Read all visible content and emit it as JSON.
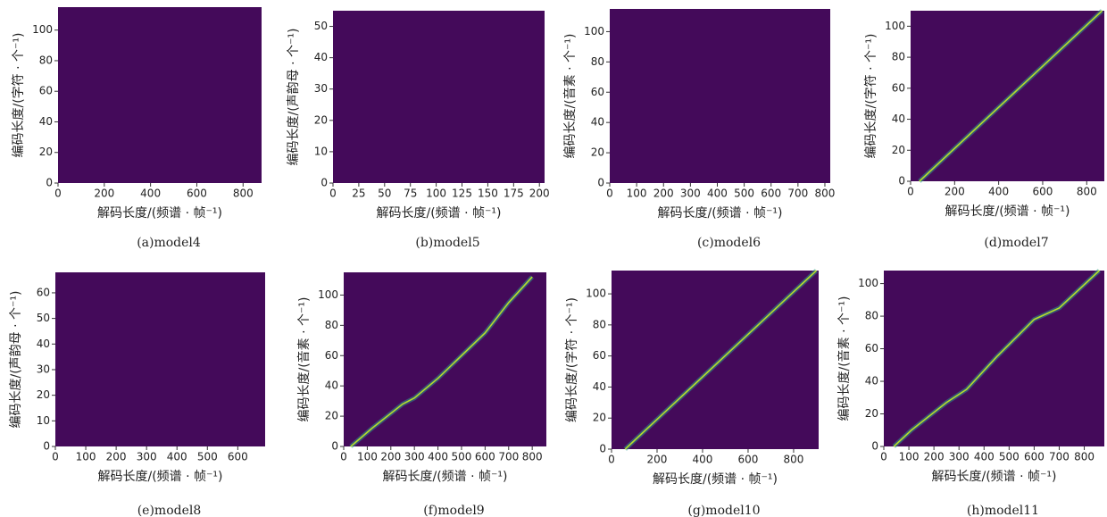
{
  "chart_data": [
    {
      "type": "heatmap",
      "caption": "(a)model4",
      "xlabel": "解码长度/(频谱 · 帧⁻¹)",
      "ylabel": "编码长度/(字符 · 个⁻¹)",
      "xlim": [
        0,
        880
      ],
      "xticks": [
        0,
        200,
        400,
        600,
        800
      ],
      "ylim": [
        0,
        115
      ],
      "yticks": [
        0,
        20,
        40,
        60,
        80,
        100
      ]
    },
    {
      "type": "heatmap",
      "caption": "(b)model5",
      "xlabel": "解码长度/(频谱 · 帧⁻¹)",
      "ylabel": "编码长度/(声韵母 · 个⁻¹)",
      "xlim": [
        0,
        205
      ],
      "xticks": [
        0,
        25,
        50,
        75,
        100,
        125,
        150,
        175,
        200
      ],
      "ylim": [
        0,
        55
      ],
      "yticks": [
        0,
        10,
        20,
        30,
        40,
        50
      ]
    },
    {
      "type": "heatmap",
      "caption": "(c)model6",
      "xlabel": "解码长度/(频谱 · 帧⁻¹)",
      "ylabel": "编码长度/(音素 · 个⁻¹)",
      "xlim": [
        0,
        820
      ],
      "xticks": [
        0,
        100,
        200,
        300,
        400,
        500,
        600,
        700,
        800
      ],
      "ylim": [
        0,
        115
      ],
      "yticks": [
        0,
        20,
        40,
        60,
        80,
        100
      ]
    },
    {
      "type": "heatmap",
      "caption": "(d)model7",
      "xlabel": "解码长度/(频谱 · 帧⁻¹)",
      "ylabel": "编码长度/(字符 · 个⁻¹)",
      "xlim": [
        0,
        880
      ],
      "xticks": [
        0,
        200,
        400,
        600,
        800
      ],
      "ylim": [
        0,
        110
      ],
      "yticks": [
        0,
        20,
        40,
        60,
        80,
        100
      ],
      "x": [
        40,
        870
      ],
      "values": [
        0,
        110
      ]
    },
    {
      "type": "heatmap",
      "caption": "(e)model8",
      "xlabel": "解码长度/(频谱 · 帧⁻¹)",
      "ylabel": "编码长度/(声韵母 · 个⁻¹)",
      "xlim": [
        0,
        690
      ],
      "xticks": [
        0,
        100,
        200,
        300,
        400,
        500,
        600
      ],
      "ylim": [
        0,
        68
      ],
      "yticks": [
        0,
        10,
        20,
        30,
        40,
        50,
        60
      ]
    },
    {
      "type": "heatmap",
      "caption": "(f)model9",
      "xlabel": "解码长度/(频谱 · 帧⁻¹)",
      "ylabel": "编码长度/(音素 · 个⁻¹)",
      "xlim": [
        0,
        860
      ],
      "xticks": [
        0,
        100,
        200,
        300,
        400,
        500,
        600,
        700,
        800
      ],
      "ylim": [
        0,
        115
      ],
      "yticks": [
        0,
        20,
        40,
        60,
        80,
        100
      ],
      "x": [
        30,
        120,
        250,
        300,
        400,
        500,
        600,
        700,
        800
      ],
      "values": [
        0,
        12,
        28,
        32,
        45,
        60,
        75,
        95,
        112
      ]
    },
    {
      "type": "heatmap",
      "caption": "(g)model10",
      "xlabel": "解码长度/(频谱 · 帧⁻¹)",
      "ylabel": "编码长度/(字符 · 个⁻¹)",
      "xlim": [
        0,
        910
      ],
      "xticks": [
        0,
        200,
        400,
        600,
        800
      ],
      "ylim": [
        0,
        115
      ],
      "yticks": [
        0,
        20,
        40,
        60,
        80,
        100
      ],
      "x": [
        60,
        900
      ],
      "values": [
        0,
        115
      ]
    },
    {
      "type": "heatmap",
      "caption": "(h)model11",
      "xlabel": "解码长度/(频谱 · 帧⁻¹)",
      "ylabel": "编码长度/(音素 · 个⁻¹)",
      "xlim": [
        0,
        880
      ],
      "xticks": [
        0,
        100,
        200,
        300,
        400,
        500,
        600,
        700,
        800
      ],
      "ylim": [
        0,
        108
      ],
      "yticks": [
        0,
        20,
        40,
        60,
        80,
        100
      ],
      "x": [
        40,
        110,
        250,
        330,
        450,
        600,
        700,
        860
      ],
      "values": [
        0,
        10,
        27,
        35,
        55,
        78,
        85,
        108
      ]
    }
  ]
}
